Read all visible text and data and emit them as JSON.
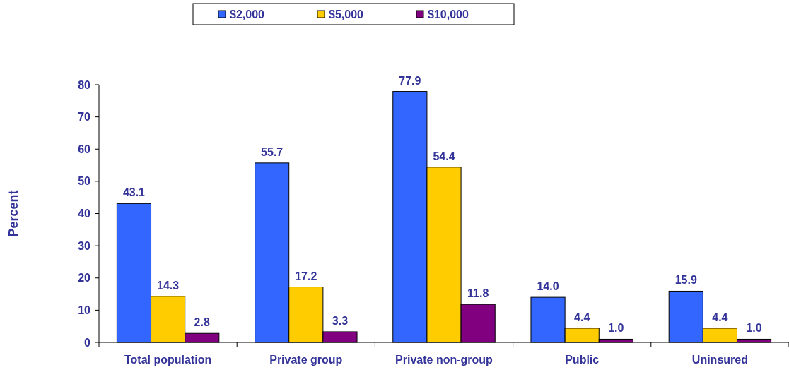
{
  "chart_data": {
    "type": "bar",
    "ylabel": "Percent",
    "categories": [
      "Total population",
      "Private group",
      "Private non-group",
      "Public",
      "Uninsured"
    ],
    "series": [
      {
        "name": "$2,000",
        "color": "#3366ff",
        "values": [
          43.1,
          55.7,
          77.9,
          14.0,
          15.9
        ],
        "value_labels": [
          "43.1",
          "55.7",
          "77.9",
          "14.0",
          "15.9"
        ]
      },
      {
        "name": "$5,000",
        "color": "#ffcc00",
        "values": [
          14.3,
          17.2,
          54.4,
          4.4,
          4.4
        ],
        "value_labels": [
          "14.3",
          "17.2",
          "54.4",
          "4.4",
          "4.4"
        ]
      },
      {
        "name": "$10,000",
        "color": "#800080",
        "values": [
          2.8,
          3.3,
          11.8,
          1.0,
          1.0
        ],
        "value_labels": [
          "2.8",
          "3.3",
          "11.8",
          "1.0",
          "1.0"
        ]
      }
    ],
    "ylim": [
      0,
      80
    ],
    "yticks": [
      0,
      10,
      20,
      30,
      40,
      50,
      60,
      70,
      80
    ],
    "grid": false,
    "legend": "top"
  }
}
